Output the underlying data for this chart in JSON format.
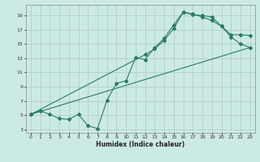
{
  "xlabel": "Humidex (Indice chaleur)",
  "bg_color": "#cceae4",
  "grid_color": "#b0c8c4",
  "line_color": "#2a7a6a",
  "xlim": [
    -0.5,
    23.5
  ],
  "ylim": [
    2.5,
    20.5
  ],
  "xticks": [
    0,
    1,
    2,
    3,
    4,
    5,
    6,
    7,
    8,
    9,
    10,
    11,
    12,
    13,
    14,
    15,
    16,
    17,
    18,
    19,
    20,
    21,
    22,
    23
  ],
  "yticks": [
    3,
    5,
    7,
    9,
    11,
    13,
    15,
    17,
    19
  ],
  "curve1_x": [
    0,
    1,
    2,
    3,
    4,
    5,
    6,
    7,
    8,
    9,
    10,
    11,
    12,
    13,
    14,
    15,
    16,
    17,
    18,
    19,
    20,
    21,
    22,
    23
  ],
  "curve1_y": [
    5.1,
    5.6,
    5.1,
    4.5,
    4.4,
    5.1,
    3.5,
    3.1,
    7.1,
    9.5,
    9.8,
    13.1,
    12.8,
    14.5,
    15.8,
    17.7,
    19.5,
    19.1,
    19.0,
    18.8,
    17.5,
    16.3,
    16.3,
    16.2
  ],
  "curve2_x": [
    0,
    12,
    13,
    14,
    15,
    16,
    17,
    18,
    19,
    20,
    21,
    22,
    23
  ],
  "curve2_y": [
    5.1,
    13.5,
    14.3,
    15.5,
    17.2,
    19.5,
    19.2,
    18.8,
    18.3,
    17.5,
    16.0,
    15.0,
    14.5
  ],
  "curve3_x": [
    0,
    23
  ],
  "curve3_y": [
    5.1,
    14.5
  ]
}
